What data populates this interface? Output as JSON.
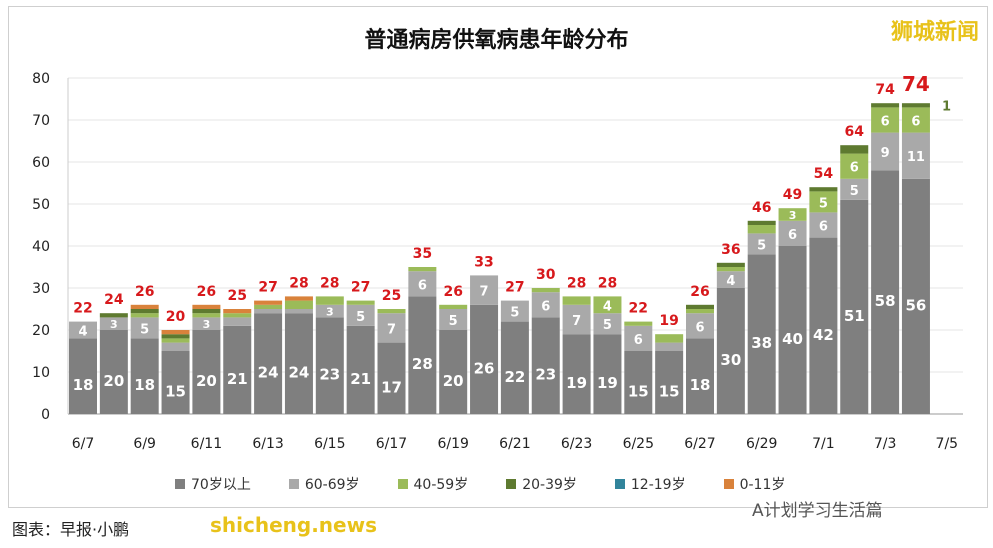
{
  "watermark": "狮城新闻",
  "footer": {
    "caption": "图表：早报·小鹏",
    "site": "shicheng.news",
    "account": "A计划学习生活篇"
  },
  "chart_data": {
    "type": "bar",
    "stacked": true,
    "title": "普通病房供氧病患年龄分布",
    "ylim": [
      0,
      80
    ],
    "yticks": [
      0,
      10,
      20,
      30,
      40,
      50,
      60,
      70,
      80
    ],
    "grid": true,
    "legend_position": "bottom",
    "categories": [
      "6/7",
      "6/8",
      "6/9",
      "6/10",
      "6/11",
      "6/12",
      "6/13",
      "6/14",
      "6/15",
      "6/16",
      "6/17",
      "6/18",
      "6/19",
      "6/20",
      "6/21",
      "6/22",
      "6/23",
      "6/24",
      "6/25",
      "6/26",
      "6/27",
      "6/28",
      "6/29",
      "6/30",
      "7/1",
      "7/2",
      "7/3",
      "7/4"
    ],
    "xtick_labels": [
      "6/7",
      "6/9",
      "6/11",
      "6/13",
      "6/15",
      "6/17",
      "6/19",
      "6/21",
      "6/23",
      "6/25",
      "6/27",
      "6/29",
      "7/1",
      "7/3",
      "7/5"
    ],
    "series": [
      {
        "name": "70岁以上",
        "color": "#7f7f7f",
        "values": [
          18,
          20,
          18,
          15,
          20,
          21,
          24,
          24,
          23,
          21,
          17,
          28,
          20,
          26,
          22,
          23,
          19,
          19,
          15,
          15,
          18,
          30,
          38,
          40,
          42,
          51,
          58,
          56
        ]
      },
      {
        "name": "60-69岁",
        "color": "#a9a9a9",
        "values": [
          4,
          3,
          5,
          2,
          3,
          2,
          1,
          1,
          3,
          5,
          7,
          6,
          5,
          7,
          5,
          6,
          7,
          5,
          6,
          2,
          6,
          4,
          5,
          6,
          6,
          5,
          9,
          11
        ]
      },
      {
        "name": "40-59岁",
        "color": "#9bbb59",
        "values": [
          0,
          0,
          1,
          1,
          1,
          1,
          1,
          2,
          2,
          1,
          1,
          1,
          1,
          0,
          0,
          1,
          2,
          4,
          1,
          2,
          1,
          1,
          2,
          3,
          5,
          6,
          6,
          6
        ]
      },
      {
        "name": "20-39岁",
        "color": "#5e7a30",
        "values": [
          0,
          1,
          1,
          1,
          1,
          0,
          0,
          0,
          0,
          0,
          0,
          0,
          0,
          0,
          0,
          0,
          0,
          0,
          0,
          0,
          1,
          1,
          1,
          0,
          1,
          2,
          1,
          1
        ]
      },
      {
        "name": "12-19岁",
        "color": "#31849b",
        "values": [
          0,
          0,
          0,
          0,
          0,
          0,
          0,
          0,
          0,
          0,
          0,
          0,
          0,
          0,
          0,
          0,
          0,
          0,
          0,
          0,
          0,
          0,
          0,
          0,
          0,
          0,
          0,
          0
        ]
      },
      {
        "name": "0-11岁",
        "color": "#d9823b",
        "values": [
          0,
          0,
          1,
          1,
          1,
          1,
          1,
          1,
          0,
          0,
          0,
          0,
          0,
          0,
          0,
          0,
          0,
          0,
          0,
          0,
          0,
          0,
          0,
          0,
          0,
          0,
          0,
          0
        ]
      }
    ],
    "totals": [
      22,
      24,
      26,
      20,
      26,
      25,
      27,
      28,
      28,
      27,
      25,
      35,
      26,
      33,
      27,
      30,
      28,
      28,
      22,
      19,
      26,
      36,
      46,
      49,
      54,
      64,
      74,
      74
    ],
    "total_color": "#d7191c"
  }
}
